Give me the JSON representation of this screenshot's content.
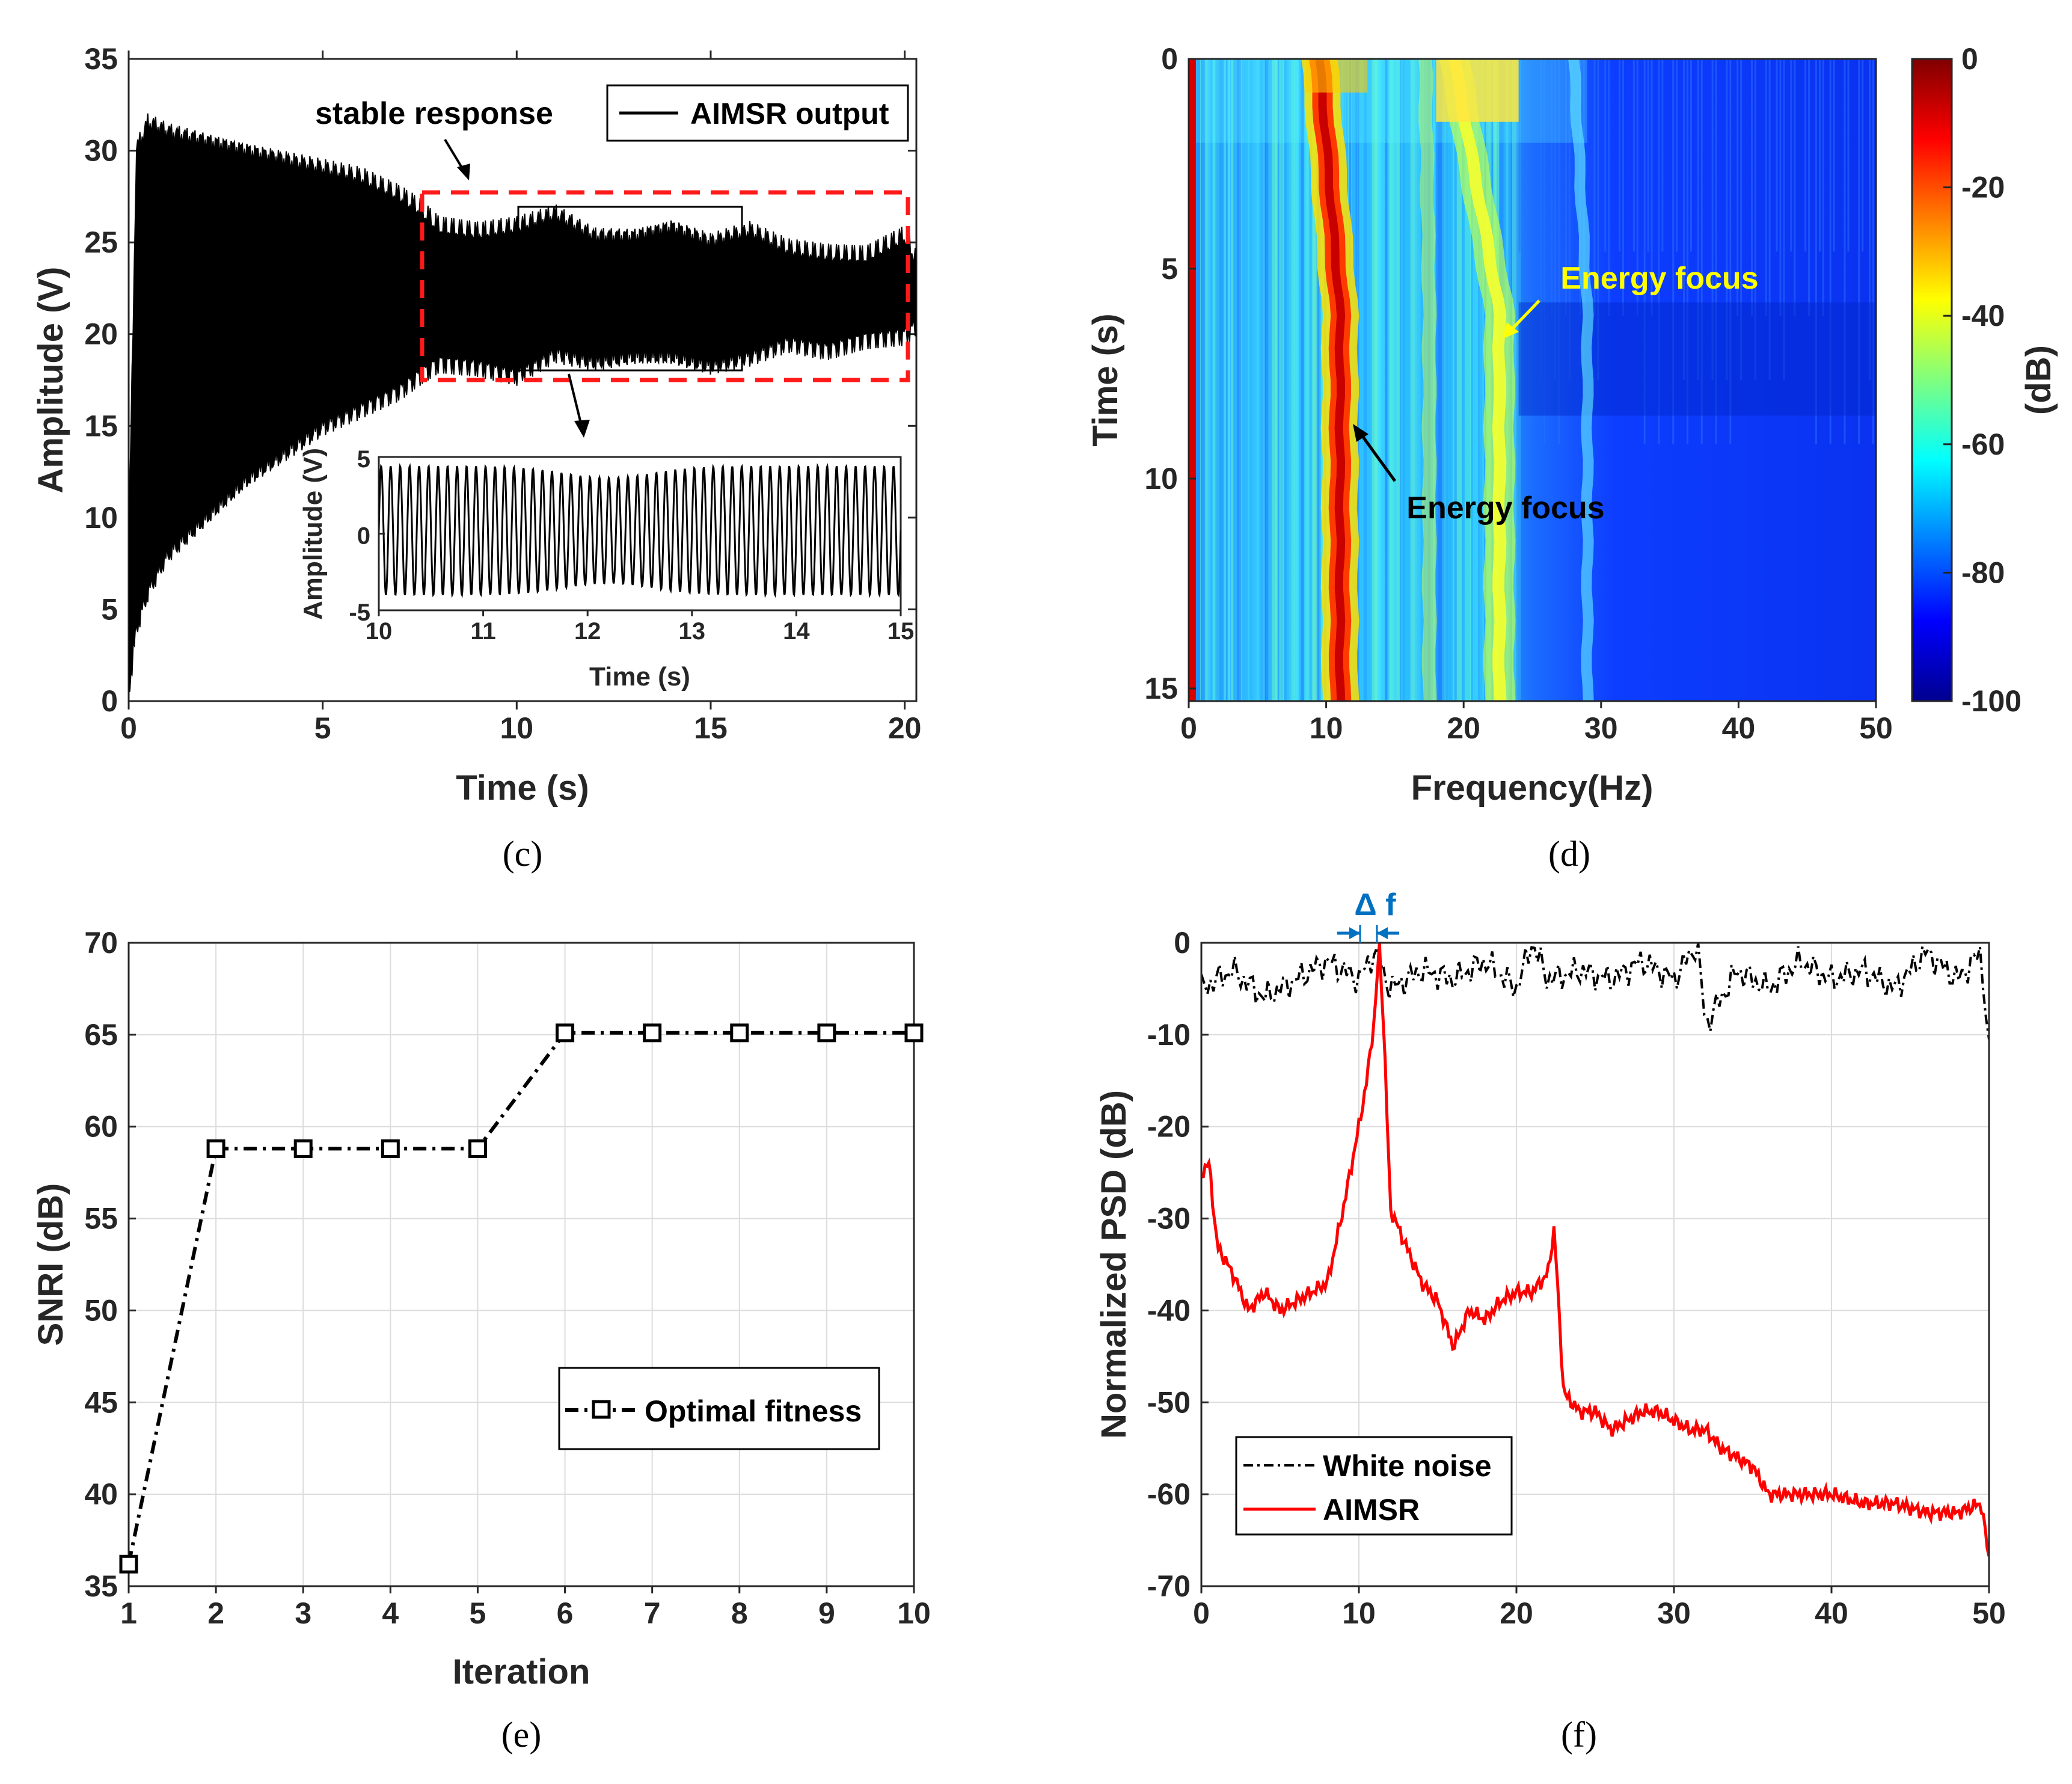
{
  "panels": {
    "c": {
      "caption": "(c)"
    },
    "d": {
      "caption": "(d)"
    },
    "e": {
      "caption": "(e)"
    },
    "f": {
      "caption": "(f)"
    }
  },
  "chart_data": [
    {
      "id": "c",
      "type": "line",
      "title": "",
      "xlabel": "Time (s)",
      "ylabel": "Amplitude (V)",
      "xlim": [
        0,
        20.3
      ],
      "ylim": [
        0,
        35
      ],
      "xticks": [
        "0",
        "5",
        "10",
        "15",
        "20"
      ],
      "yticks": [
        "0",
        "5",
        "10",
        "15",
        "20",
        "25",
        "30",
        "35"
      ],
      "legend": [
        "AIMSR output"
      ],
      "legend_position": "top-right",
      "annotation": "stable response",
      "envelope": {
        "t": [
          0,
          0.2,
          0.5,
          1,
          2,
          3,
          4,
          5,
          6,
          7,
          7.5,
          8,
          9,
          10,
          11,
          12,
          13,
          14,
          15,
          16,
          17,
          18,
          19,
          20,
          20.3
        ],
        "upper": [
          8,
          30,
          31.5,
          31,
          30.5,
          30,
          29.5,
          29,
          28.5,
          27.5,
          26.8,
          25.8,
          25.5,
          25.8,
          26.5,
          25.3,
          25.3,
          25.8,
          25,
          25.6,
          24.6,
          24.3,
          24.2,
          25.3,
          24
        ],
        "lower": [
          0.5,
          4,
          6,
          8,
          10,
          12,
          13.5,
          15,
          16,
          17,
          17.8,
          18.5,
          18.3,
          17.8,
          19,
          18.5,
          18.8,
          18.8,
          18.3,
          18.8,
          19.6,
          19.2,
          19.8,
          20,
          20.5
        ]
      },
      "inset": {
        "xlabel": "Time (s)",
        "ylabel": "Amplitude (V)",
        "xlim": [
          10,
          15
        ],
        "ylim": [
          -5,
          5
        ],
        "xticks": [
          "10",
          "11",
          "12",
          "13",
          "14",
          "15"
        ],
        "yticks": [
          "-5",
          "0",
          "5"
        ],
        "frequency_hz": 11,
        "amplitude": 4.2
      }
    },
    {
      "id": "d",
      "type": "heatmap",
      "xlabel": "Frequency(Hz)",
      "ylabel": "Time (s)",
      "xlim": [
        0,
        50
      ],
      "ylim": [
        0,
        15.3
      ],
      "xticks": [
        "0",
        "10",
        "20",
        "30",
        "40",
        "50"
      ],
      "yticks": [
        "0",
        "5",
        "10",
        "15"
      ],
      "colorbar": {
        "label": "(dB)",
        "range": [
          -100,
          0
        ],
        "ticks": [
          "0",
          "-20",
          "-40",
          "-60",
          "-80",
          "-100"
        ]
      },
      "annotations": [
        {
          "text": "Energy focus",
          "color": "#000000",
          "freq_hz": 11
        },
        {
          "text": "Energy focus",
          "color": "#ffff00",
          "freq_hz": 22
        }
      ],
      "ridges_hz": [
        0.3,
        10.5,
        19.5,
        22.5
      ]
    },
    {
      "id": "e",
      "type": "line",
      "xlabel": "Iteration",
      "ylabel": "SNRI (dB)",
      "xlim": [
        1,
        10
      ],
      "ylim": [
        35,
        70
      ],
      "xticks": [
        "1",
        "2",
        "3",
        "4",
        "5",
        "6",
        "7",
        "8",
        "9",
        "10"
      ],
      "yticks": [
        "35",
        "40",
        "45",
        "50",
        "55",
        "60",
        "65",
        "70"
      ],
      "legend": [
        "Optimal fitness"
      ],
      "legend_position": "center-right",
      "series": [
        {
          "name": "Optimal fitness",
          "x": [
            1,
            2,
            3,
            4,
            5,
            6,
            7,
            8,
            9,
            10
          ],
          "y": [
            36.2,
            58.8,
            58.8,
            58.8,
            58.8,
            65.1,
            65.1,
            65.1,
            65.1,
            65.1
          ]
        }
      ]
    },
    {
      "id": "f",
      "type": "line",
      "xlabel": "",
      "ylabel": "Normalized PSD (dB)",
      "xlim": [
        0,
        50
      ],
      "ylim": [
        -70,
        0
      ],
      "xticks": [
        "0",
        "10",
        "20",
        "30",
        "40",
        "50"
      ],
      "yticks": [
        "0",
        "-10",
        "-20",
        "-30",
        "-40",
        "-50",
        "-60",
        "-70"
      ],
      "legend": [
        "White noise",
        "AIMSR"
      ],
      "legend_position": "bottom-left",
      "annotation": "Δ f",
      "series": [
        {
          "name": "White noise",
          "x": [
            0,
            2,
            4,
            6,
            8,
            10,
            11,
            12,
            14,
            16,
            18,
            20,
            21,
            22,
            24,
            26,
            28,
            30,
            31.5,
            32,
            34,
            36,
            38,
            40,
            42,
            44,
            46,
            48,
            49.5,
            50
          ],
          "y": [
            -5,
            -3,
            -6,
            -4,
            -2,
            -4,
            -1,
            -5,
            -3,
            -4,
            -2,
            -5,
            0,
            -4,
            -3,
            -4,
            -2,
            -4,
            0,
            -9,
            -3,
            -5,
            -2,
            -4,
            -3,
            -5,
            -1,
            -4,
            -1,
            -12
          ]
        },
        {
          "name": "AIMSR",
          "x": [
            0,
            0.5,
            1,
            2,
            3,
            4,
            5,
            6,
            7,
            8,
            9,
            10,
            10.5,
            11,
            11.3,
            11.6,
            12,
            13,
            14,
            15,
            16,
            17,
            18,
            19,
            20,
            21,
            22,
            22.4,
            23,
            24,
            25,
            26,
            27,
            28,
            29,
            30,
            31,
            32,
            33,
            35,
            36,
            38,
            40,
            42,
            44,
            46,
            48,
            49.5,
            50
          ],
          "y": [
            -25,
            -24,
            -33,
            -36,
            -40,
            -38,
            -40,
            -39,
            -38,
            -37,
            -29,
            -20,
            -15,
            -8,
            0,
            -10,
            -29,
            -33,
            -37,
            -39,
            -44,
            -40,
            -41,
            -39,
            -38,
            -38,
            -36,
            -31,
            -49,
            -51,
            -51,
            -53,
            -52,
            -51,
            -51,
            -52,
            -53,
            -53,
            -55,
            -57,
            -60,
            -60,
            -60,
            -61,
            -61,
            -62,
            -62,
            -61,
            -67
          ]
        }
      ]
    }
  ]
}
